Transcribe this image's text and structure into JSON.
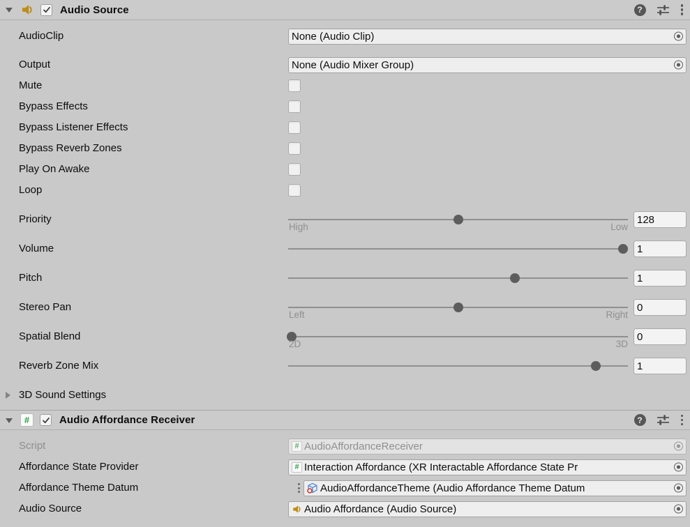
{
  "colors": {
    "speaker_amber": "#bd8d17",
    "script_green": "#2f9e44",
    "cube_blue": "#5b8fd4",
    "badge_red": "#d03a3a"
  },
  "audio_source": {
    "title": "Audio Source",
    "enabled": true,
    "audio_clip": {
      "label": "AudioClip",
      "value": "None (Audio Clip)"
    },
    "output": {
      "label": "Output",
      "value": "None (Audio Mixer Group)"
    },
    "toggles": [
      {
        "label": "Mute",
        "checked": false
      },
      {
        "label": "Bypass Effects",
        "checked": false
      },
      {
        "label": "Bypass Listener Effects",
        "checked": false
      },
      {
        "label": "Bypass Reverb Zones",
        "checked": false
      },
      {
        "label": "Play On Awake",
        "checked": false
      },
      {
        "label": "Loop",
        "checked": false
      }
    ],
    "sliders": [
      {
        "label": "Priority",
        "value": "128",
        "min": "High",
        "max": "Low",
        "percent": 50
      },
      {
        "label": "Volume",
        "value": "1",
        "percent": 98.5
      },
      {
        "label": "Pitch",
        "value": "1",
        "percent": 66.8
      },
      {
        "label": "Stereo Pan",
        "value": "0",
        "min": "Left",
        "max": "Right",
        "percent": 50
      },
      {
        "label": "Spatial Blend",
        "value": "0",
        "min": "2D",
        "max": "3D",
        "percent": 1
      },
      {
        "label": "Reverb Zone Mix",
        "value": "1",
        "percent": 90.5
      }
    ],
    "foldout_3d": "3D Sound Settings"
  },
  "audio_affordance_receiver": {
    "title": "Audio Affordance Receiver",
    "enabled": true,
    "script": {
      "label": "Script",
      "value": "AudioAffordanceReceiver"
    },
    "state_provider": {
      "label": "Affordance State Provider",
      "value": "Interaction Affordance (XR Interactable Affordance State Pr"
    },
    "theme_datum": {
      "label": "Affordance Theme Datum",
      "value": "AudioAffordanceTheme (Audio Affordance Theme Datum"
    },
    "audio_source_ref": {
      "label": "Audio Source",
      "value": "Audio Affordance (Audio Source)"
    }
  }
}
